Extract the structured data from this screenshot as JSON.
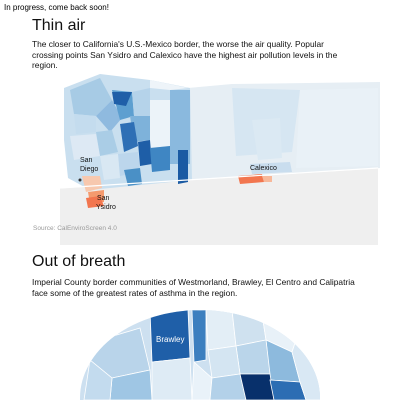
{
  "notice": "In progress, come back soon!",
  "section1": {
    "title": "Thin air",
    "description": "The closer to California's U.S.-Mexico border, the worse the air quality. Popular crossing points San Ysidro and Calexico have the highest air pollution levels in the region.",
    "labels": {
      "san_diego_line1": "San",
      "san_diego_line2": "Diego",
      "san_ysidro_line1": "San",
      "san_ysidro_line2": "Ysidro",
      "calexico": "Calexico"
    },
    "source": "Source: CalEnviroScreen 4.0"
  },
  "section2": {
    "title": "Out of breath",
    "description": "Imperial County border communities of Westmorland, Brawley, El Centro and Calipatria face some of the greatest rates of asthma in the region.",
    "labels": {
      "brawley": "Brawley"
    }
  },
  "colors": {
    "blue_darkest": "#08306b",
    "blue_dark": "#1f5fa8",
    "blue_mid": "#4a90c6",
    "blue_light": "#9cc7e3",
    "blue_pale": "#cfe2f0",
    "blue_faint": "#e3eef6",
    "orange": "#f2764f",
    "orange_light": "#f7b89a",
    "land_gray": "#eeeeee"
  }
}
